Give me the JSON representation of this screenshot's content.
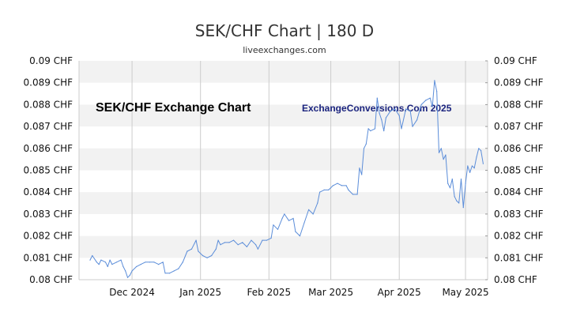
{
  "chart_data": {
    "type": "line",
    "title": "SEK/CHF Chart | 180 D",
    "subtitle": "liveexchanges.com",
    "watermark_left": "SEK/CHF Exchange Chart",
    "watermark_right": "ExchangeConversions.Com 2025",
    "y_unit": "CHF",
    "ylim": [
      0.08,
      0.09
    ],
    "y_ticks": [
      "0.09 CHF",
      "0.089 CHF",
      "0.088 CHF",
      "0.087 CHF",
      "0.086 CHF",
      "0.085 CHF",
      "0.084 CHF",
      "0.083 CHF",
      "0.082 CHF",
      "0.081 CHF",
      "0.08 CHF"
    ],
    "y_tick_values": [
      0.09,
      0.089,
      0.088,
      0.087,
      0.086,
      0.085,
      0.084,
      0.083,
      0.082,
      0.081,
      0.08
    ],
    "x_ticks": [
      "Dec 2024",
      "Jan 2025",
      "Feb 2025",
      "Mar 2025",
      "Apr 2025",
      "May 2025"
    ],
    "x_tick_dates": [
      "2024-12-01",
      "2025-01-01",
      "2025-02-01",
      "2025-03-01",
      "2025-04-01",
      "2025-05-01"
    ],
    "xlim": [
      "2024-11-07",
      "2025-05-11"
    ],
    "grid": "horizontal bands and vertical month lines",
    "line_color": "#5b8dd9",
    "series": [
      {
        "name": "",
        "points": [
          [
            "2024-11-12",
            0.0809
          ],
          [
            "2024-11-13",
            0.0811
          ],
          [
            "2024-11-15",
            0.0808
          ],
          [
            "2024-11-16",
            0.0807
          ],
          [
            "2024-11-17",
            0.0809
          ],
          [
            "2024-11-19",
            0.0808
          ],
          [
            "2024-11-20",
            0.0806
          ],
          [
            "2024-11-21",
            0.0809
          ],
          [
            "2024-11-22",
            0.0807
          ],
          [
            "2024-11-24",
            0.0808
          ],
          [
            "2024-11-26",
            0.0809
          ],
          [
            "2024-11-27",
            0.0806
          ],
          [
            "2024-11-28",
            0.0804
          ],
          [
            "2024-11-29",
            0.0801
          ],
          [
            "2024-11-30",
            0.0802
          ],
          [
            "2024-12-01",
            0.0804
          ],
          [
            "2024-12-03",
            0.0806
          ],
          [
            "2024-12-05",
            0.0807
          ],
          [
            "2024-12-07",
            0.0808
          ],
          [
            "2024-12-09",
            0.0808
          ],
          [
            "2024-12-11",
            0.0808
          ],
          [
            "2024-12-13",
            0.0807
          ],
          [
            "2024-12-15",
            0.0808
          ],
          [
            "2024-12-16",
            0.0803
          ],
          [
            "2024-12-18",
            0.0803
          ],
          [
            "2024-12-20",
            0.0804
          ],
          [
            "2024-12-22",
            0.0805
          ],
          [
            "2024-12-24",
            0.0808
          ],
          [
            "2024-12-26",
            0.0813
          ],
          [
            "2024-12-28",
            0.0814
          ],
          [
            "2024-12-30",
            0.0818
          ],
          [
            "2024-12-31",
            0.0813
          ],
          [
            "2025-01-02",
            0.0811
          ],
          [
            "2025-01-04",
            0.081
          ],
          [
            "2025-01-06",
            0.0811
          ],
          [
            "2025-01-08",
            0.0814
          ],
          [
            "2025-01-09",
            0.0818
          ],
          [
            "2025-01-10",
            0.0816
          ],
          [
            "2025-01-12",
            0.0817
          ],
          [
            "2025-01-14",
            0.0817
          ],
          [
            "2025-01-16",
            0.0818
          ],
          [
            "2025-01-18",
            0.0816
          ],
          [
            "2025-01-20",
            0.0817
          ],
          [
            "2025-01-22",
            0.0815
          ],
          [
            "2025-01-24",
            0.0818
          ],
          [
            "2025-01-26",
            0.0816
          ],
          [
            "2025-01-27",
            0.0814
          ],
          [
            "2025-01-29",
            0.0818
          ],
          [
            "2025-01-31",
            0.0818
          ],
          [
            "2025-02-02",
            0.0819
          ],
          [
            "2025-02-03",
            0.0825
          ],
          [
            "2025-02-05",
            0.0823
          ],
          [
            "2025-02-07",
            0.0828
          ],
          [
            "2025-02-08",
            0.083
          ],
          [
            "2025-02-10",
            0.0827
          ],
          [
            "2025-02-12",
            0.0828
          ],
          [
            "2025-02-13",
            0.0822
          ],
          [
            "2025-02-15",
            0.082
          ],
          [
            "2025-02-17",
            0.0826
          ],
          [
            "2025-02-19",
            0.0832
          ],
          [
            "2025-02-21",
            0.083
          ],
          [
            "2025-02-23",
            0.0835
          ],
          [
            "2025-02-24",
            0.084
          ],
          [
            "2025-02-26",
            0.0841
          ],
          [
            "2025-02-28",
            0.0841
          ],
          [
            "2025-03-02",
            0.0843
          ],
          [
            "2025-03-04",
            0.0844
          ],
          [
            "2025-03-06",
            0.0843
          ],
          [
            "2025-03-08",
            0.0843
          ],
          [
            "2025-03-09",
            0.0841
          ],
          [
            "2025-03-11",
            0.0839
          ],
          [
            "2025-03-13",
            0.0839
          ],
          [
            "2025-03-14",
            0.0851
          ],
          [
            "2025-03-15",
            0.0848
          ],
          [
            "2025-03-16",
            0.086
          ],
          [
            "2025-03-17",
            0.0862
          ],
          [
            "2025-03-18",
            0.0869
          ],
          [
            "2025-03-19",
            0.0868
          ],
          [
            "2025-03-21",
            0.0869
          ],
          [
            "2025-03-22",
            0.0883
          ],
          [
            "2025-03-23",
            0.0876
          ],
          [
            "2025-03-24",
            0.0873
          ],
          [
            "2025-03-25",
            0.0868
          ],
          [
            "2025-03-26",
            0.0874
          ],
          [
            "2025-03-28",
            0.0877
          ],
          [
            "2025-03-30",
            0.0878
          ],
          [
            "2025-04-01",
            0.0875
          ],
          [
            "2025-04-02",
            0.0869
          ],
          [
            "2025-04-04",
            0.0878
          ],
          [
            "2025-04-06",
            0.0877
          ],
          [
            "2025-04-07",
            0.087
          ],
          [
            "2025-04-09",
            0.0873
          ],
          [
            "2025-04-11",
            0.088
          ],
          [
            "2025-04-13",
            0.0882
          ],
          [
            "2025-04-15",
            0.0883
          ],
          [
            "2025-04-16",
            0.0879
          ],
          [
            "2025-04-17",
            0.0891
          ],
          [
            "2025-04-18",
            0.0886
          ],
          [
            "2025-04-19",
            0.0858
          ],
          [
            "2025-04-20",
            0.086
          ],
          [
            "2025-04-21",
            0.0855
          ],
          [
            "2025-04-22",
            0.0857
          ],
          [
            "2025-04-23",
            0.0844
          ],
          [
            "2025-04-24",
            0.0842
          ],
          [
            "2025-04-25",
            0.0846
          ],
          [
            "2025-04-26",
            0.0838
          ],
          [
            "2025-04-27",
            0.0836
          ],
          [
            "2025-04-28",
            0.0835
          ],
          [
            "2025-04-29",
            0.0846
          ],
          [
            "2025-04-30",
            0.0833
          ],
          [
            "2025-05-01",
            0.0844
          ],
          [
            "2025-05-02",
            0.0852
          ],
          [
            "2025-05-03",
            0.0849
          ],
          [
            "2025-05-04",
            0.0852
          ],
          [
            "2025-05-05",
            0.0851
          ],
          [
            "2025-05-06",
            0.0856
          ],
          [
            "2025-05-07",
            0.086
          ],
          [
            "2025-05-08",
            0.0859
          ],
          [
            "2025-05-09",
            0.0853
          ]
        ]
      }
    ]
  }
}
